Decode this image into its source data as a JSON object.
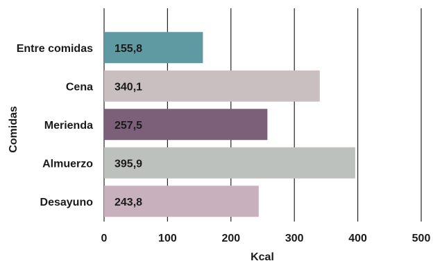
{
  "chart_data": {
    "type": "bar",
    "orientation": "horizontal",
    "categories": [
      "Entre comidas",
      "Cena",
      "Merienda",
      "Almuerzo",
      "Desayuno"
    ],
    "values": [
      155.8,
      340.1,
      257.5,
      395.9,
      243.8
    ],
    "value_labels": [
      "155,8",
      "340,1",
      "257,5",
      "395,9",
      "243,8"
    ],
    "colors": [
      "#5f9aa3",
      "#c9bfc1",
      "#7c6079",
      "#bcc1bd",
      "#c8b1bd"
    ],
    "title": "",
    "xlabel": "Kcal",
    "ylabel": "Comidas",
    "xlim": [
      0,
      500
    ],
    "xticks": [
      0,
      100,
      200,
      300,
      400,
      500
    ],
    "grid": "vertical"
  }
}
